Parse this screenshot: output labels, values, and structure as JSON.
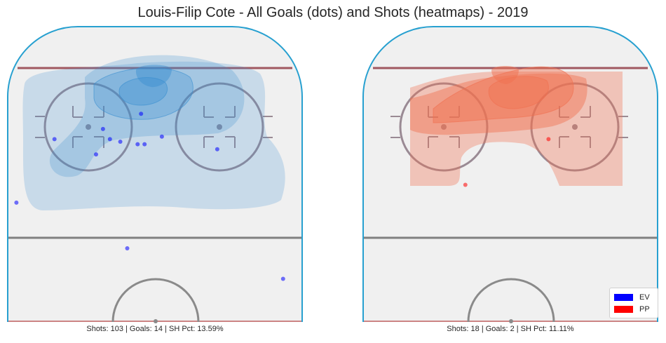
{
  "title": "Louis-Filip Cote - All Goals (dots) and Shots (heatmaps) - 2019",
  "chart_data": [
    {
      "type": "scatter",
      "name": "EV",
      "caption": "Shots: 103 | Goals: 14 | SH Pct: 13.59%",
      "goals_x": [
        -29,
        -17,
        -15,
        -13,
        -10,
        -5,
        -3,
        -4,
        2,
        18,
        -55,
        -40,
        -8,
        37
      ],
      "goals_y": [
        72,
        66,
        76,
        72,
        71,
        70,
        70,
        82,
        73,
        68,
        54,
        47,
        29,
        17
      ],
      "color": "#0000ff",
      "heatmap_color": "#3a8fd0",
      "x_range": [
        -42.5,
        42.5
      ],
      "y_range": [
        0,
        100
      ]
    },
    {
      "type": "scatter",
      "name": "PP",
      "caption": "Shots: 18 | Goals: 2 | SH Pct: 11.11%",
      "goals_x": [
        -13,
        11
      ],
      "goals_y": [
        54,
        72
      ],
      "color": "#ff0000",
      "heatmap_color": "#f07050",
      "x_range": [
        -42.5,
        42.5
      ],
      "y_range": [
        0,
        100
      ]
    }
  ],
  "legend": {
    "position": "lower-right",
    "items": [
      {
        "label": "EV",
        "color": "#0000ff"
      },
      {
        "label": "PP",
        "color": "#ff0000"
      }
    ]
  }
}
